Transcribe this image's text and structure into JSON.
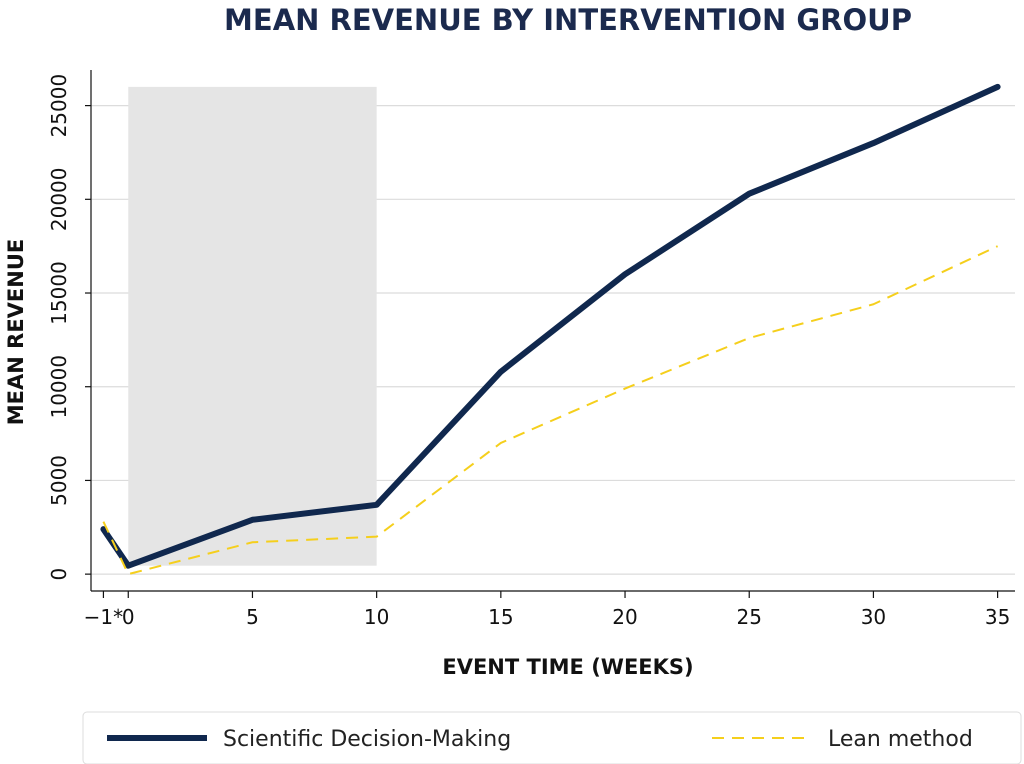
{
  "chart_data": {
    "type": "line",
    "title": "MEAN REVENUE BY INTERVENTION GROUP",
    "xlabel": "EVENT TIME (WEEKS)",
    "ylabel": "MEAN REVENUE",
    "x": [
      -1,
      0,
      5,
      10,
      15,
      20,
      25,
      30,
      35
    ],
    "xtick_labels": [
      "−1*",
      "0",
      "5",
      "10",
      "15",
      "20",
      "25",
      "30",
      "35"
    ],
    "yticks": [
      0,
      5000,
      10000,
      15000,
      20000,
      25000
    ],
    "ytick_labels": [
      "0",
      "5000",
      "10000",
      "15000",
      "20000",
      "25000"
    ],
    "xlim": [
      -1.5,
      35.7
    ],
    "ylim": [
      -900,
      26900
    ],
    "grid": "horizontal",
    "shaded_region": {
      "x_start": 0,
      "x_end": 10,
      "y_top": 26000,
      "color": "#e5e5e5"
    },
    "series": [
      {
        "name": "Scientific Decision-Making",
        "color": "#10284e",
        "style": "solid",
        "values": [
          2400,
          450,
          2900,
          3700,
          10800,
          16000,
          20300,
          23000,
          26000
        ]
      },
      {
        "name": "Lean method",
        "color": "#f5cf1c",
        "style": "dashed",
        "values": [
          2800,
          0,
          1700,
          2000,
          7000,
          9900,
          12600,
          14400,
          17500
        ]
      }
    ],
    "legend_position": "bottom"
  }
}
